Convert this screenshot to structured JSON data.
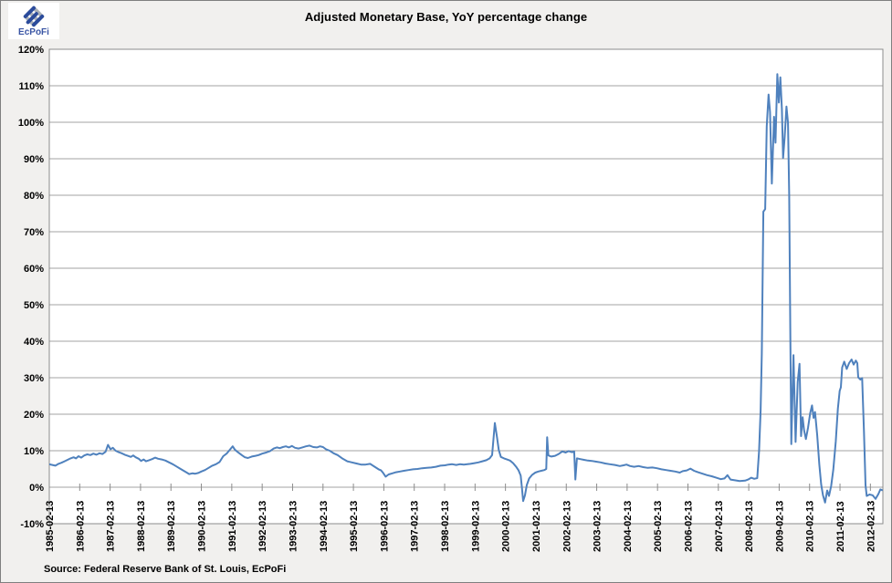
{
  "logo": {
    "text": "EcPoFi",
    "icon": "woven-diamond",
    "icon_blue": "#2b4b9b",
    "icon_gray": "#aab0b8",
    "text_color": "#3a55a4",
    "box_bg": "#ffffff"
  },
  "header": {
    "title": "Adjusted Monetary Base, YoY percentage change"
  },
  "footer": {
    "source": "Source: Federal Reserve Bank of St. Louis, EcPoFi"
  },
  "chart_data": {
    "type": "line",
    "title": "Adjusted Monetary Base, YoY percentage change",
    "xlabel": "",
    "ylabel": "",
    "ylim": [
      -10,
      120
    ],
    "ytick_step": 10,
    "ytick_labels": [
      "120%",
      "110%",
      "100%",
      "90%",
      "80%",
      "70%",
      "60%",
      "50%",
      "40%",
      "30%",
      "20%",
      "10%",
      "0%",
      "-10%"
    ],
    "xtick_labels": [
      "1985-02-13",
      "1986-02-13",
      "1987-02-13",
      "1988-02-13",
      "1989-02-13",
      "1990-02-13",
      "1991-02-13",
      "1992-02-13",
      "1993-02-13",
      "1994-02-13",
      "1995-02-13",
      "1996-02-13",
      "1997-02-13",
      "1998-02-13",
      "1999-02-13",
      "2000-02-13",
      "2001-02-13",
      "2002-02-13",
      "2003-02-13",
      "2004-02-13",
      "2005-02-13",
      "2006-02-13",
      "2007-02-13",
      "2008-02-13",
      "2009-02-13",
      "2010-02-13",
      "2011-02-13",
      "2012-02-13"
    ],
    "x_start": 1985.12,
    "x_end": 2012.53,
    "grid": true,
    "legend": false,
    "line_color": "#4F81BD",
    "gridline_color": "#a3a3a3",
    "axis_color": "#8c8c8c",
    "plot_bg": "#ffffff",
    "outer_bg": "#f1f0ee",
    "series": [
      {
        "name": "Adjusted monetary base, YoY % change",
        "points": [
          [
            1985.12,
            6.3
          ],
          [
            1985.22,
            6.1
          ],
          [
            1985.32,
            5.9
          ],
          [
            1985.42,
            6.4
          ],
          [
            1985.52,
            6.7
          ],
          [
            1985.62,
            7.1
          ],
          [
            1985.72,
            7.5
          ],
          [
            1985.82,
            7.9
          ],
          [
            1985.92,
            8.2
          ],
          [
            1986.0,
            7.9
          ],
          [
            1986.08,
            8.5
          ],
          [
            1986.17,
            8.1
          ],
          [
            1986.27,
            8.7
          ],
          [
            1986.37,
            9.0
          ],
          [
            1986.47,
            8.8
          ],
          [
            1986.57,
            9.2
          ],
          [
            1986.67,
            8.9
          ],
          [
            1986.77,
            9.3
          ],
          [
            1986.87,
            9.1
          ],
          [
            1986.97,
            9.7
          ],
          [
            1987.05,
            11.6
          ],
          [
            1987.13,
            10.4
          ],
          [
            1987.21,
            10.8
          ],
          [
            1987.3,
            10.0
          ],
          [
            1987.4,
            9.6
          ],
          [
            1987.5,
            9.3
          ],
          [
            1987.6,
            8.9
          ],
          [
            1987.7,
            8.6
          ],
          [
            1987.8,
            8.3
          ],
          [
            1987.88,
            8.7
          ],
          [
            1987.96,
            8.2
          ],
          [
            1988.06,
            7.8
          ],
          [
            1988.14,
            7.2
          ],
          [
            1988.22,
            7.6
          ],
          [
            1988.3,
            7.1
          ],
          [
            1988.4,
            7.4
          ],
          [
            1988.5,
            7.7
          ],
          [
            1988.6,
            8.1
          ],
          [
            1988.7,
            7.8
          ],
          [
            1988.82,
            7.6
          ],
          [
            1988.94,
            7.3
          ],
          [
            1989.06,
            6.8
          ],
          [
            1989.18,
            6.3
          ],
          [
            1989.3,
            5.7
          ],
          [
            1989.42,
            5.1
          ],
          [
            1989.54,
            4.5
          ],
          [
            1989.64,
            4.0
          ],
          [
            1989.72,
            3.6
          ],
          [
            1989.82,
            3.8
          ],
          [
            1989.92,
            3.7
          ],
          [
            1990.02,
            3.9
          ],
          [
            1990.12,
            4.3
          ],
          [
            1990.24,
            4.7
          ],
          [
            1990.36,
            5.3
          ],
          [
            1990.48,
            5.9
          ],
          [
            1990.6,
            6.3
          ],
          [
            1990.72,
            6.9
          ],
          [
            1990.84,
            8.5
          ],
          [
            1990.95,
            9.2
          ],
          [
            1991.05,
            10.2
          ],
          [
            1991.15,
            11.2
          ],
          [
            1991.22,
            10.3
          ],
          [
            1991.32,
            9.6
          ],
          [
            1991.45,
            8.8
          ],
          [
            1991.55,
            8.2
          ],
          [
            1991.65,
            8.0
          ],
          [
            1991.78,
            8.4
          ],
          [
            1991.9,
            8.6
          ],
          [
            1992.0,
            8.8
          ],
          [
            1992.12,
            9.2
          ],
          [
            1992.25,
            9.5
          ],
          [
            1992.38,
            9.9
          ],
          [
            1992.5,
            10.6
          ],
          [
            1992.6,
            10.9
          ],
          [
            1992.7,
            10.7
          ],
          [
            1992.8,
            11.0
          ],
          [
            1992.9,
            11.2
          ],
          [
            1993.0,
            10.9
          ],
          [
            1993.1,
            11.3
          ],
          [
            1993.2,
            10.8
          ],
          [
            1993.32,
            10.6
          ],
          [
            1993.44,
            10.9
          ],
          [
            1993.56,
            11.2
          ],
          [
            1993.68,
            11.4
          ],
          [
            1993.8,
            11.0
          ],
          [
            1993.92,
            10.9
          ],
          [
            1994.02,
            11.2
          ],
          [
            1994.12,
            11.0
          ],
          [
            1994.22,
            10.4
          ],
          [
            1994.34,
            10.0
          ],
          [
            1994.47,
            9.3
          ],
          [
            1994.6,
            8.8
          ],
          [
            1994.77,
            7.8
          ],
          [
            1994.92,
            7.1
          ],
          [
            1995.07,
            6.8
          ],
          [
            1995.22,
            6.5
          ],
          [
            1995.37,
            6.2
          ],
          [
            1995.52,
            6.2
          ],
          [
            1995.67,
            6.4
          ],
          [
            1995.82,
            5.6
          ],
          [
            1995.95,
            4.9
          ],
          [
            1996.03,
            4.6
          ],
          [
            1996.1,
            3.9
          ],
          [
            1996.18,
            2.9
          ],
          [
            1996.28,
            3.5
          ],
          [
            1996.4,
            3.8
          ],
          [
            1996.52,
            4.1
          ],
          [
            1996.65,
            4.3
          ],
          [
            1996.78,
            4.5
          ],
          [
            1996.93,
            4.7
          ],
          [
            1997.08,
            4.9
          ],
          [
            1997.23,
            5.0
          ],
          [
            1997.38,
            5.2
          ],
          [
            1997.53,
            5.3
          ],
          [
            1997.68,
            5.4
          ],
          [
            1997.83,
            5.6
          ],
          [
            1997.98,
            5.9
          ],
          [
            1998.13,
            6.0
          ],
          [
            1998.25,
            6.2
          ],
          [
            1998.37,
            6.3
          ],
          [
            1998.5,
            6.1
          ],
          [
            1998.62,
            6.3
          ],
          [
            1998.75,
            6.2
          ],
          [
            1998.87,
            6.3
          ],
          [
            1998.97,
            6.4
          ],
          [
            1999.1,
            6.6
          ],
          [
            1999.23,
            6.8
          ],
          [
            1999.36,
            7.1
          ],
          [
            1999.49,
            7.4
          ],
          [
            1999.6,
            7.9
          ],
          [
            1999.68,
            8.8
          ],
          [
            1999.77,
            17.6
          ],
          [
            1999.84,
            13.8
          ],
          [
            1999.9,
            10.2
          ],
          [
            1999.97,
            8.3
          ],
          [
            2000.07,
            7.9
          ],
          [
            2000.17,
            7.6
          ],
          [
            2000.27,
            7.3
          ],
          [
            2000.37,
            6.6
          ],
          [
            2000.47,
            5.6
          ],
          [
            2000.55,
            4.6
          ],
          [
            2000.62,
            3.2
          ],
          [
            2000.66,
            0.0
          ],
          [
            2000.7,
            -3.8
          ],
          [
            2000.76,
            -2.2
          ],
          [
            2000.82,
            0.6
          ],
          [
            2000.9,
            2.4
          ],
          [
            2001.0,
            3.4
          ],
          [
            2001.1,
            4.0
          ],
          [
            2001.2,
            4.3
          ],
          [
            2001.3,
            4.5
          ],
          [
            2001.4,
            4.7
          ],
          [
            2001.46,
            5.0
          ],
          [
            2001.49,
            13.7
          ],
          [
            2001.53,
            8.7
          ],
          [
            2001.63,
            8.4
          ],
          [
            2001.75,
            8.6
          ],
          [
            2001.87,
            9.1
          ],
          [
            2001.99,
            9.8
          ],
          [
            2002.1,
            9.5
          ],
          [
            2002.2,
            9.9
          ],
          [
            2002.3,
            9.6
          ],
          [
            2002.38,
            9.8
          ],
          [
            2002.42,
            2.1
          ],
          [
            2002.47,
            7.9
          ],
          [
            2002.58,
            7.7
          ],
          [
            2002.7,
            7.5
          ],
          [
            2002.83,
            7.3
          ],
          [
            2002.96,
            7.2
          ],
          [
            2003.1,
            7.0
          ],
          [
            2003.25,
            6.8
          ],
          [
            2003.4,
            6.5
          ],
          [
            2003.55,
            6.3
          ],
          [
            2003.72,
            6.1
          ],
          [
            2003.88,
            5.8
          ],
          [
            2004.0,
            6.0
          ],
          [
            2004.1,
            6.2
          ],
          [
            2004.22,
            5.8
          ],
          [
            2004.35,
            5.6
          ],
          [
            2004.5,
            5.8
          ],
          [
            2004.65,
            5.5
          ],
          [
            2004.8,
            5.3
          ],
          [
            2004.95,
            5.4
          ],
          [
            2005.1,
            5.2
          ],
          [
            2005.25,
            4.9
          ],
          [
            2005.4,
            4.7
          ],
          [
            2005.55,
            4.5
          ],
          [
            2005.7,
            4.3
          ],
          [
            2005.85,
            4.0
          ],
          [
            2005.95,
            4.4
          ],
          [
            2006.08,
            4.6
          ],
          [
            2006.2,
            5.1
          ],
          [
            2006.32,
            4.5
          ],
          [
            2006.45,
            4.1
          ],
          [
            2006.6,
            3.7
          ],
          [
            2006.75,
            3.3
          ],
          [
            2006.9,
            3.0
          ],
          [
            2007.05,
            2.6
          ],
          [
            2007.2,
            2.2
          ],
          [
            2007.32,
            2.4
          ],
          [
            2007.42,
            3.3
          ],
          [
            2007.52,
            2.1
          ],
          [
            2007.66,
            1.9
          ],
          [
            2007.82,
            1.7
          ],
          [
            2008.0,
            1.8
          ],
          [
            2008.1,
            2.1
          ],
          [
            2008.2,
            2.6
          ],
          [
            2008.3,
            2.3
          ],
          [
            2008.4,
            2.5
          ],
          [
            2008.46,
            9.9
          ],
          [
            2008.51,
            21.0
          ],
          [
            2008.55,
            36.6
          ],
          [
            2008.6,
            75.5
          ],
          [
            2008.66,
            76.2
          ],
          [
            2008.71,
            98.9
          ],
          [
            2008.77,
            107.6
          ],
          [
            2008.82,
            102.8
          ],
          [
            2008.88,
            83.2
          ],
          [
            2008.95,
            101.5
          ],
          [
            2009.0,
            94.4
          ],
          [
            2009.06,
            113.2
          ],
          [
            2009.11,
            105.4
          ],
          [
            2009.16,
            112.3
          ],
          [
            2009.21,
            103.6
          ],
          [
            2009.25,
            90.2
          ],
          [
            2009.3,
            95.8
          ],
          [
            2009.36,
            104.3
          ],
          [
            2009.41,
            99.8
          ],
          [
            2009.45,
            80.0
          ],
          [
            2009.49,
            40.0
          ],
          [
            2009.52,
            11.8
          ],
          [
            2009.59,
            36.2
          ],
          [
            2009.66,
            12.4
          ],
          [
            2009.73,
            28.8
          ],
          [
            2009.79,
            33.8
          ],
          [
            2009.84,
            14.0
          ],
          [
            2009.89,
            19.2
          ],
          [
            2009.94,
            15.6
          ],
          [
            2010.0,
            13.2
          ],
          [
            2010.07,
            16.4
          ],
          [
            2010.14,
            20.3
          ],
          [
            2010.2,
            22.4
          ],
          [
            2010.25,
            19.0
          ],
          [
            2010.3,
            20.6
          ],
          [
            2010.37,
            14.2
          ],
          [
            2010.44,
            6.2
          ],
          [
            2010.5,
            0.8
          ],
          [
            2010.56,
            -2.2
          ],
          [
            2010.63,
            -4.2
          ],
          [
            2010.7,
            -0.9
          ],
          [
            2010.76,
            -2.4
          ],
          [
            2010.83,
            0.4
          ],
          [
            2010.9,
            4.8
          ],
          [
            2010.98,
            12.5
          ],
          [
            2011.05,
            21.5
          ],
          [
            2011.11,
            26.4
          ],
          [
            2011.15,
            27.4
          ],
          [
            2011.19,
            32.8
          ],
          [
            2011.26,
            34.4
          ],
          [
            2011.34,
            32.4
          ],
          [
            2011.42,
            34.0
          ],
          [
            2011.5,
            35.0
          ],
          [
            2011.57,
            33.6
          ],
          [
            2011.64,
            34.7
          ],
          [
            2011.69,
            34.0
          ],
          [
            2011.72,
            30.1
          ],
          [
            2011.79,
            29.5
          ],
          [
            2011.85,
            29.9
          ],
          [
            2011.91,
            15.2
          ],
          [
            2011.96,
            0.6
          ],
          [
            2012.0,
            -2.4
          ],
          [
            2012.09,
            -2.0
          ],
          [
            2012.19,
            -2.2
          ],
          [
            2012.29,
            -3.2
          ],
          [
            2012.38,
            -1.9
          ],
          [
            2012.45,
            -0.6
          ],
          [
            2012.5,
            -0.8
          ]
        ]
      }
    ]
  }
}
